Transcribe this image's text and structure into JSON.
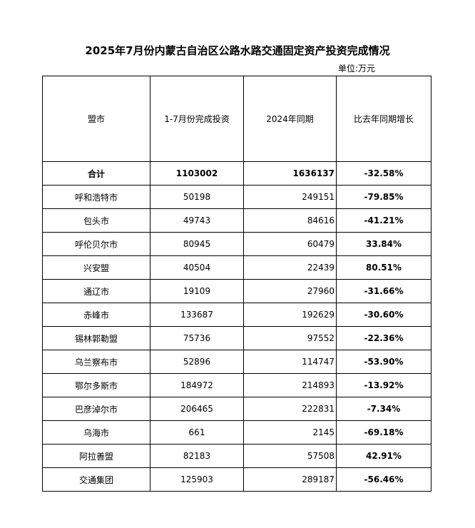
{
  "title": "2025年7月份内蒙古自治区公路水路交通固定资产投资完成情况",
  "unit": "单位:万元",
  "headers": [
    "盟市",
    "1-7月份完成投资",
    "2024年同期",
    "比去年同期增长"
  ],
  "rows": [
    [
      "合计",
      "1103002",
      "1636137",
      "-32.58%"
    ],
    [
      "呼和浩特市",
      "50198",
      "249151",
      "-79.85%"
    ],
    [
      "包头市",
      "49743",
      "84616",
      "-41.21%"
    ],
    [
      "呼伦贝尔市",
      "80945",
      "60479",
      "33.84%"
    ],
    [
      "兴安盟",
      "40504",
      "22439",
      "80.51%"
    ],
    [
      "通辽市",
      "19109",
      "27960",
      "-31.66%"
    ],
    [
      "赤峰市",
      "133687",
      "192629",
      "-30.60%"
    ],
    [
      "锡林郭勒盟",
      "75736",
      "97552",
      "-22.36%"
    ],
    [
      "乌兰察布市",
      "52896",
      "114747",
      "-53.90%"
    ],
    [
      "鄂尔多斯市",
      "184972",
      "214893",
      "-13.92%"
    ],
    [
      "巴彦淖尔市",
      "206465",
      "222831",
      "-7.34%"
    ],
    [
      "乌海市",
      "661",
      "2145",
      "-69.18%"
    ],
    [
      "阿拉善盟",
      "82183",
      "57508",
      "42.91%"
    ],
    [
      "交通集团",
      "125903",
      "289187",
      "-56.46%"
    ]
  ]
}
